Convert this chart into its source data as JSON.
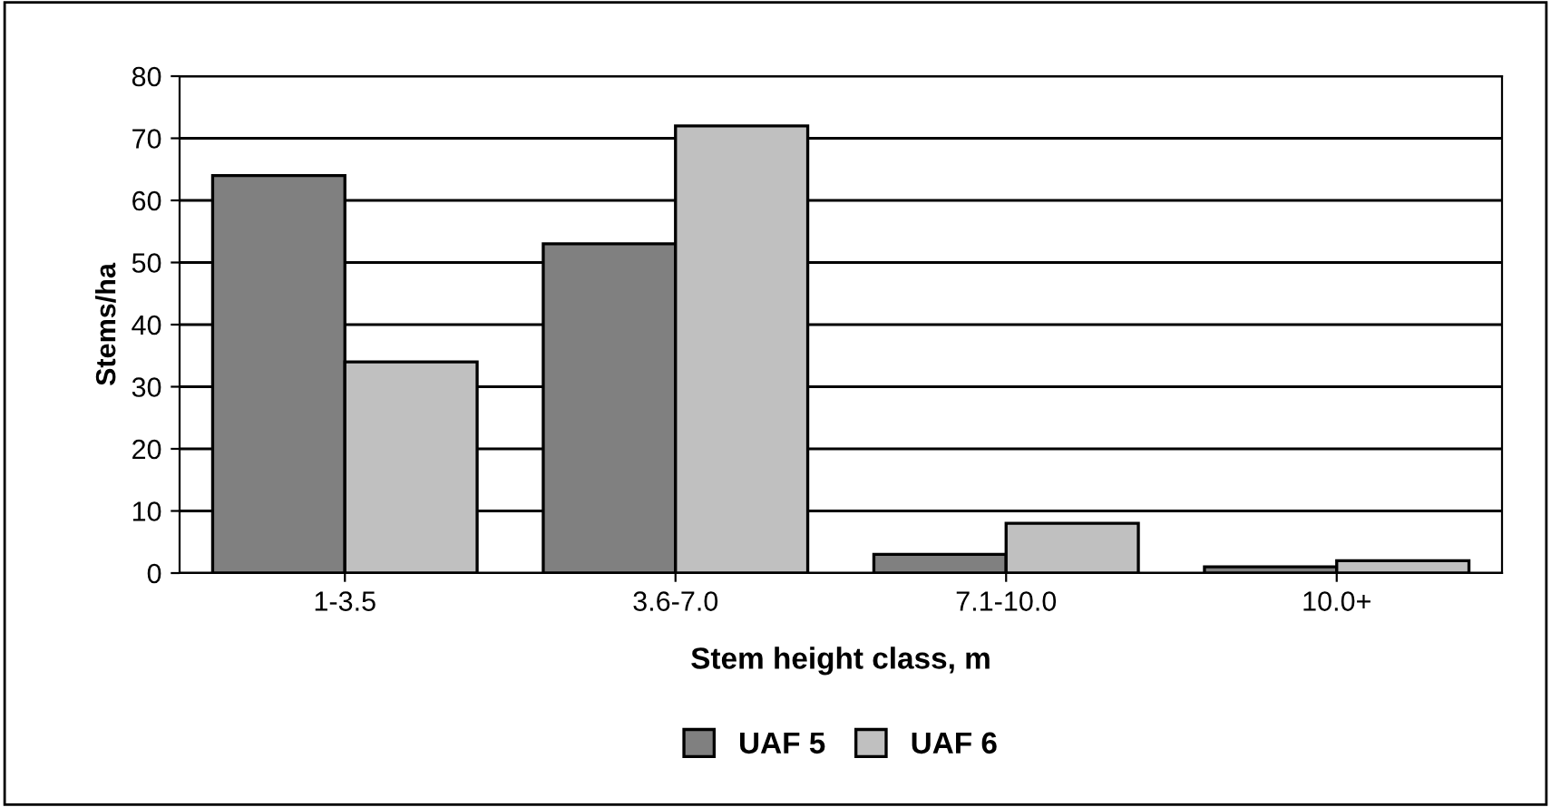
{
  "chart_data": {
    "type": "bar",
    "xlabel": "Stem height class, m",
    "ylabel": "Stems/ha",
    "categories": [
      "1-3.5",
      "3.6-7.0",
      "7.1-10.0",
      "10.0+"
    ],
    "series": [
      {
        "name": "UAF 5",
        "color": "#808080",
        "values": [
          64,
          53,
          3,
          1
        ]
      },
      {
        "name": "UAF 6",
        "color": "#c0c0c0",
        "values": [
          34,
          72,
          8,
          2
        ]
      }
    ],
    "ylim": [
      0,
      80
    ],
    "yticks": [
      0,
      10,
      20,
      30,
      40,
      50,
      60,
      70,
      80
    ],
    "grid": "y",
    "legend": "bottom"
  }
}
